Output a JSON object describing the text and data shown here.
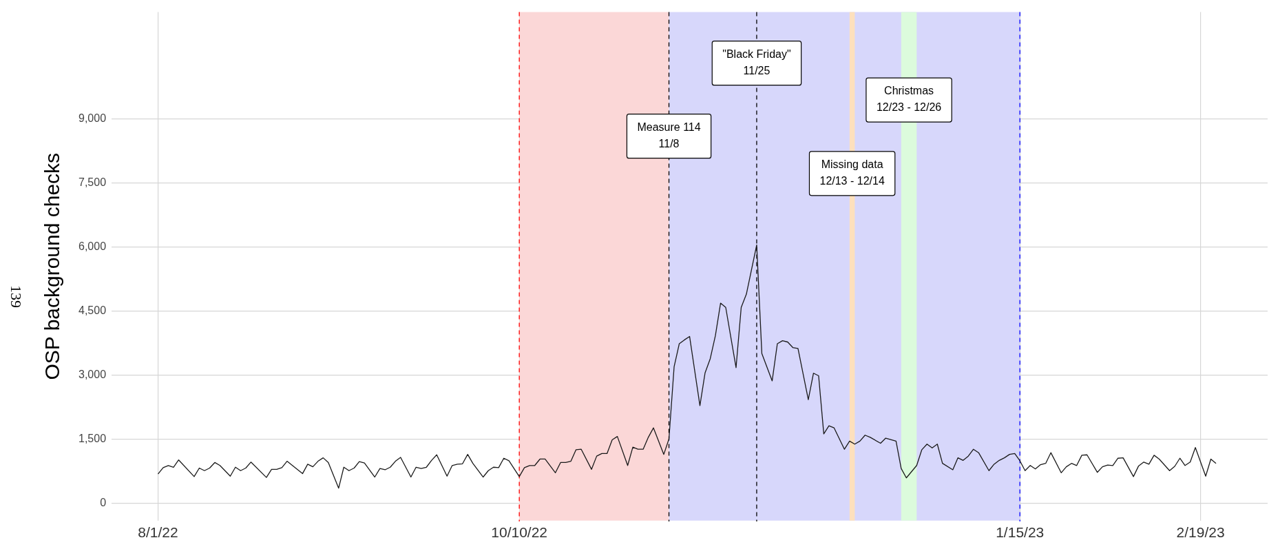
{
  "chart_data": {
    "type": "line",
    "ylabel": "OSP background checks",
    "annotations": [
      "139"
    ],
    "x": [
      "2022-08-01",
      "2022-08-02",
      "2022-08-03",
      "2022-08-04",
      "2022-08-05",
      "2022-08-08",
      "2022-08-09",
      "2022-08-10",
      "2022-08-11",
      "2022-08-12",
      "2022-08-13",
      "2022-08-15",
      "2022-08-16",
      "2022-08-17",
      "2022-08-18",
      "2022-08-19",
      "2022-08-22",
      "2022-08-23",
      "2022-08-24",
      "2022-08-25",
      "2022-08-26",
      "2022-08-29",
      "2022-08-30",
      "2022-08-31",
      "2022-09-01",
      "2022-09-02",
      "2022-09-03",
      "2022-09-05",
      "2022-09-06",
      "2022-09-07",
      "2022-09-08",
      "2022-09-09",
      "2022-09-10",
      "2022-09-12",
      "2022-09-13",
      "2022-09-14",
      "2022-09-15",
      "2022-09-16",
      "2022-09-17",
      "2022-09-19",
      "2022-09-20",
      "2022-09-21",
      "2022-09-22",
      "2022-09-23",
      "2022-09-24",
      "2022-09-26",
      "2022-09-27",
      "2022-09-28",
      "2022-09-29",
      "2022-09-30",
      "2022-10-01",
      "2022-10-03",
      "2022-10-04",
      "2022-10-05",
      "2022-10-06",
      "2022-10-07",
      "2022-10-08",
      "2022-10-10",
      "2022-10-11",
      "2022-10-12",
      "2022-10-13",
      "2022-10-14",
      "2022-10-15",
      "2022-10-17",
      "2022-10-18",
      "2022-10-19",
      "2022-10-20",
      "2022-10-21",
      "2022-10-22",
      "2022-10-24",
      "2022-10-25",
      "2022-10-26",
      "2022-10-27",
      "2022-10-28",
      "2022-10-29",
      "2022-10-31",
      "2022-11-01",
      "2022-11-02",
      "2022-11-03",
      "2022-11-04",
      "2022-11-05",
      "2022-11-07",
      "2022-11-08",
      "2022-11-09",
      "2022-11-10",
      "2022-11-11",
      "2022-11-12",
      "2022-11-14",
      "2022-11-15",
      "2022-11-16",
      "2022-11-17",
      "2022-11-18",
      "2022-11-19",
      "2022-11-21",
      "2022-11-22",
      "2022-11-23",
      "2022-11-25",
      "2022-11-26",
      "2022-11-28",
      "2022-11-29",
      "2022-11-30",
      "2022-12-01",
      "2022-12-02",
      "2022-12-03",
      "2022-12-05",
      "2022-12-06",
      "2022-12-07",
      "2022-12-08",
      "2022-12-09",
      "2022-12-10",
      "2022-12-12",
      "2022-12-13",
      "2022-12-14",
      "2022-12-15",
      "2022-12-16",
      "2022-12-17",
      "2022-12-19",
      "2022-12-20",
      "2022-12-22",
      "2022-12-23",
      "2022-12-24",
      "2022-12-26",
      "2022-12-27",
      "2022-12-28",
      "2022-12-29",
      "2022-12-30",
      "2022-12-31",
      "2023-01-02",
      "2023-01-03",
      "2023-01-04",
      "2023-01-05",
      "2023-01-06",
      "2023-01-07",
      "2023-01-09",
      "2023-01-10",
      "2023-01-11",
      "2023-01-12",
      "2023-01-13",
      "2023-01-14",
      "2023-01-15",
      "2023-01-16",
      "2023-01-17",
      "2023-01-18",
      "2023-01-19",
      "2023-01-20",
      "2023-01-21",
      "2023-01-23",
      "2023-01-24",
      "2023-01-25",
      "2023-01-26",
      "2023-01-27",
      "2023-01-28",
      "2023-01-30",
      "2023-01-31",
      "2023-02-01",
      "2023-02-02",
      "2023-02-03",
      "2023-02-04",
      "2023-02-06",
      "2023-02-07",
      "2023-02-08",
      "2023-02-09",
      "2023-02-10",
      "2023-02-11",
      "2023-02-13",
      "2023-02-14",
      "2023-02-15",
      "2023-02-16",
      "2023-02-17",
      "2023-02-18",
      "2023-02-20",
      "2023-02-21",
      "2023-02-22"
    ],
    "series": [
      {
        "color": "#1a1a1a",
        "values": [
          690,
          840,
          890,
          850,
          1020,
          630,
          830,
          770,
          830,
          960,
          890,
          640,
          850,
          770,
          830,
          970,
          610,
          800,
          800,
          840,
          990,
          700,
          920,
          860,
          990,
          1070,
          960,
          360,
          850,
          770,
          830,
          980,
          950,
          620,
          820,
          790,
          850,
          990,
          1080,
          620,
          850,
          820,
          850,
          1010,
          1140,
          640,
          890,
          920,
          930,
          1150,
          940,
          620,
          770,
          850,
          840,
          1060,
          1000,
          630,
          840,
          890,
          890,
          1040,
          1040,
          720,
          960,
          960,
          990,
          1260,
          1270,
          800,
          1110,
          1170,
          1170,
          1490,
          1570,
          890,
          1320,
          1270,
          1270,
          1550,
          1770,
          1150,
          1510,
          3200,
          3740,
          3830,
          3910,
          2290,
          3060,
          3390,
          3930,
          4690,
          4590,
          3180,
          4590,
          4900,
          6050,
          3510,
          2870,
          3740,
          3810,
          3780,
          3650,
          3630,
          2430,
          3050,
          2990,
          1630,
          1820,
          1770,
          1270,
          1460,
          1390,
          1460,
          1600,
          1550,
          1410,
          1530,
          1460,
          820,
          600,
          890,
          1260,
          1390,
          1300,
          1390,
          940,
          790,
          1070,
          1010,
          1110,
          1270,
          1190,
          770,
          920,
          1010,
          1070,
          1150,
          1170,
          1000,
          770,
          890,
          810,
          910,
          940,
          1190,
          720,
          860,
          940,
          890,
          1130,
          1140,
          730,
          860,
          900,
          890,
          1060,
          1070,
          630,
          880,
          970,
          920,
          1130,
          1040,
          770,
          870,
          1060,
          890,
          970,
          1310,
          640,
          1040,
          940
        ]
      }
    ],
    "xlim": [
      "2022-07-23",
      "2023-03-04"
    ],
    "xticks": [
      {
        "value": "2022-08-01",
        "label": "8/1/22"
      },
      {
        "value": "2022-10-10",
        "label": "10/10/22"
      },
      {
        "value": "2023-01-15",
        "label": "1/15/23"
      },
      {
        "value": "2023-02-19",
        "label": "2/19/23"
      }
    ],
    "ylim": [
      -400,
      11500
    ],
    "yticks": [
      {
        "value": 0,
        "label": "0"
      },
      {
        "value": 1500,
        "label": "1,500"
      },
      {
        "value": 3000,
        "label": "3,000"
      },
      {
        "value": 4500,
        "label": "4,500"
      },
      {
        "value": 6000,
        "label": "6,000"
      },
      {
        "value": 7500,
        "label": "7,500"
      },
      {
        "value": 9000,
        "label": "9,000"
      }
    ],
    "bands": [
      {
        "axis": "x",
        "from": "2022-10-10",
        "to": "2022-11-08",
        "color": "#fbd7d7"
      },
      {
        "axis": "x",
        "from": "2022-11-08",
        "to": "2023-01-15",
        "color": "#d7d7fb"
      },
      {
        "axis": "x",
        "from": "2022-12-13",
        "to": "2022-12-14",
        "color": "#fde0bd",
        "label": "Missing data\n12/13 - 12/14"
      },
      {
        "axis": "x",
        "from": "2022-12-23",
        "to": "2022-12-26",
        "color": "#dcfbdc",
        "label": "Christmas\n12/23 - 12/26"
      }
    ],
    "ref_lines": [
      {
        "axis": "x",
        "value": "2022-10-10",
        "color": "#ff0000",
        "line_style": "dashed"
      },
      {
        "axis": "x",
        "value": "2022-11-08",
        "color": "#000000",
        "line_style": "dashed",
        "label": "Measure 114\n11/8"
      },
      {
        "axis": "x",
        "value": "2022-11-25",
        "color": "#000000",
        "line_style": "dashed",
        "label": "\"Black Friday\"\n11/25"
      },
      {
        "axis": "x",
        "value": "2023-01-15",
        "color": "#0000ff",
        "line_style": "dashed"
      }
    ],
    "grid": true,
    "legend": false,
    "marker": "none",
    "line_style": "solid"
  }
}
